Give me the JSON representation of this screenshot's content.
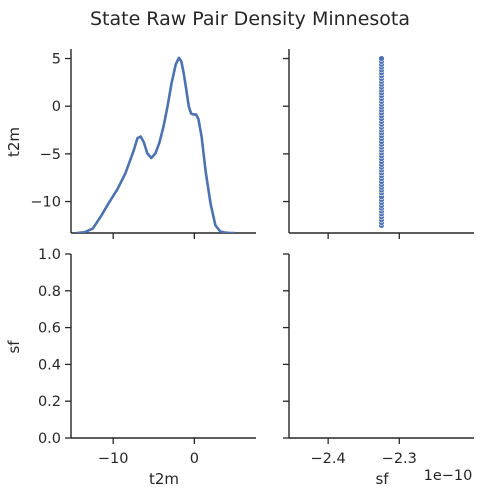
{
  "chart_data": {
    "type": "pairplot",
    "title": "State Raw Pair Density Minnesota",
    "variables": [
      "t2m",
      "sf"
    ],
    "panels": {
      "t2m_t2m": {
        "type": "kde",
        "x": [
          -14.5,
          -13.5,
          -12.5,
          -11.5,
          -10.5,
          -9.5,
          -8.5,
          -7.5,
          -7.0,
          -6.6,
          -6.2,
          -5.8,
          -5.3,
          -4.8,
          -4.3,
          -3.8,
          -3.3,
          -2.8,
          -2.3,
          -1.9,
          -1.6,
          -1.3,
          -1.0,
          -0.7,
          -0.4,
          -0.1,
          0.2,
          0.5,
          0.9,
          1.4,
          2.0,
          2.6,
          3.2,
          3.8,
          4.4,
          5.0
        ],
        "density": [
          0.0,
          0.1,
          0.6,
          2.2,
          4.0,
          5.7,
          7.8,
          10.7,
          12.4,
          12.6,
          11.8,
          10.4,
          9.8,
          10.4,
          11.8,
          13.9,
          16.6,
          19.6,
          22.0,
          22.9,
          22.4,
          20.8,
          18.8,
          16.6,
          15.6,
          15.5,
          15.5,
          14.9,
          12.6,
          8.0,
          3.8,
          1.0,
          0.2,
          0.05,
          0.0,
          0.0
        ]
      },
      "sf_t2m": {
        "type": "scatter",
        "sf_value": -2.325e-10,
        "t2m": [
          -12.5,
          -12.2,
          -11.9,
          -11.6,
          -11.3,
          -11.0,
          -10.7,
          -10.4,
          -10.1,
          -9.8,
          -9.5,
          -9.1,
          -8.8,
          -8.5,
          -8.2,
          -7.9,
          -7.6,
          -7.3,
          -7.0,
          -6.7,
          -6.4,
          -6.1,
          -5.8,
          -5.5,
          -5.2,
          -4.9,
          -4.6,
          -4.3,
          -4.0,
          -3.7,
          -3.4,
          -3.1,
          -2.8,
          -2.5,
          -2.2,
          -1.9,
          -1.6,
          -1.3,
          -1.0,
          -0.7,
          -0.4,
          -0.1,
          0.2,
          0.5,
          0.8,
          1.1,
          1.4,
          1.7,
          2.0,
          2.3,
          2.6,
          2.9,
          3.2,
          3.5,
          3.8,
          4.1,
          4.4,
          4.7,
          5.0
        ]
      },
      "t2m_sf": {
        "type": "empty"
      },
      "sf_sf": {
        "type": "empty"
      }
    },
    "axes": {
      "t2m": {
        "ylim": [
          -13.3,
          6.0
        ],
        "yticks": [
          5,
          0,
          -5,
          -10
        ],
        "xlim": [
          -15.2,
          7.6
        ],
        "xticks": [
          -10,
          0
        ]
      },
      "sf": {
        "ylim": [
          0.0,
          1.0
        ],
        "yticks": [
          0.0,
          0.2,
          0.4,
          0.6,
          0.8,
          1.0
        ],
        "xlim": [
          -2.455,
          -2.195
        ],
        "xticks": [
          -2.4,
          -2.3
        ],
        "x_offset_text": "1e−10"
      }
    },
    "grid": false,
    "legend": "none"
  },
  "labels": {
    "title": "State Raw Pair Density Minnesota",
    "ylabel_top": "t2m",
    "ylabel_bottom": "sf",
    "xlabel_left": "t2m",
    "xlabel_right": "sf",
    "x_offset_text": "1e−10",
    "t2m_yticks": [
      "5",
      "0",
      "−5",
      "−10"
    ],
    "sf_yticks": [
      "0.0",
      "0.2",
      "0.4",
      "0.6",
      "0.8",
      "1.0"
    ],
    "t2m_xticks": [
      "−10",
      "0"
    ],
    "sf_xticks": [
      "−2.4",
      "−2.3"
    ]
  },
  "colors": {
    "series": "#4c72b0",
    "axis": "#262626",
    "background": "#ffffff"
  }
}
